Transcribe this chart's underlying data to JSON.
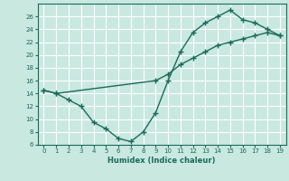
{
  "xlabel": "Humidex (Indice chaleur)",
  "bg_color": "#c8e8e0",
  "grid_color": "#ffffff",
  "line_color": "#1a6b5a",
  "line1_x": [
    0,
    1,
    2,
    3,
    4,
    5,
    6,
    7,
    8,
    9,
    10,
    11,
    12,
    13,
    14,
    15,
    16,
    17,
    18,
    19
  ],
  "line1_y": [
    14.5,
    14.0,
    13.0,
    12.0,
    9.5,
    8.5,
    7.0,
    6.5,
    8.0,
    11.0,
    16.0,
    20.5,
    23.5,
    25.0,
    26.0,
    27.0,
    25.5,
    25.0,
    24.0,
    23.0
  ],
  "line2_x": [
    0,
    1,
    9,
    10,
    11,
    12,
    13,
    14,
    15,
    16,
    17,
    18,
    19
  ],
  "line2_y": [
    14.5,
    14.0,
    16.0,
    17.0,
    18.5,
    19.5,
    20.5,
    21.5,
    22.0,
    22.5,
    23.0,
    23.5,
    23.0
  ],
  "ylim": [
    6,
    28
  ],
  "xlim": [
    -0.5,
    19.5
  ],
  "yticks": [
    6,
    8,
    10,
    12,
    14,
    16,
    18,
    20,
    22,
    24,
    26
  ],
  "xticks": [
    0,
    1,
    2,
    3,
    4,
    5,
    6,
    7,
    8,
    9,
    10,
    11,
    12,
    13,
    14,
    15,
    16,
    17,
    18,
    19
  ]
}
